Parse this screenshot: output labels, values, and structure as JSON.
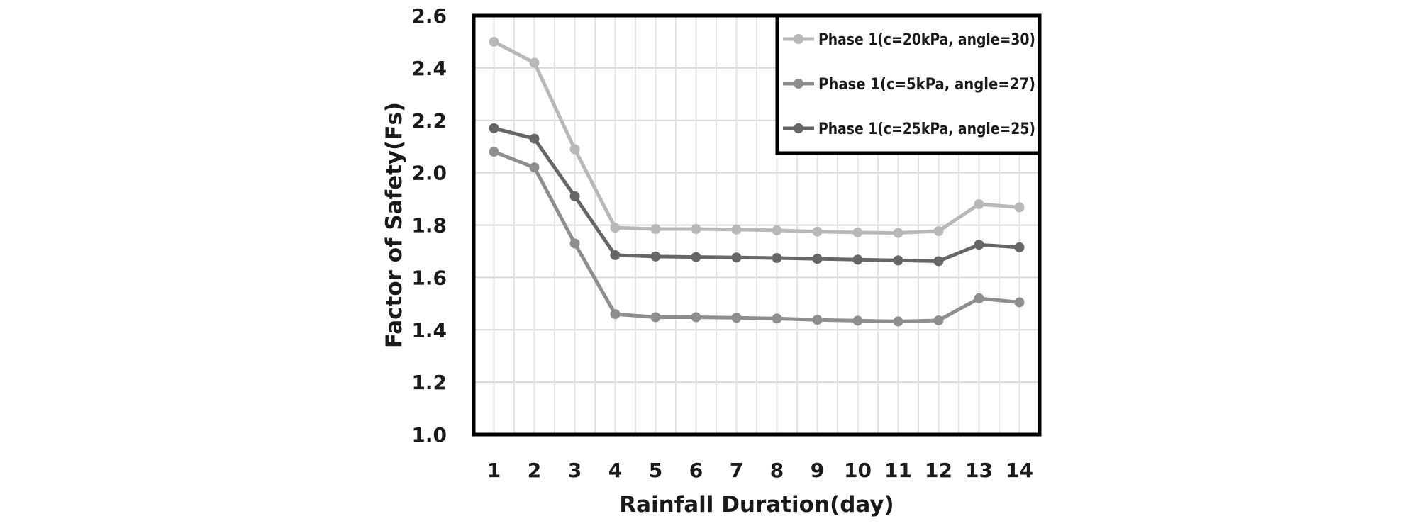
{
  "chart_data": {
    "type": "line",
    "title": "",
    "xlabel": "Rainfall Duration(day)",
    "ylabel": "Factor of Safety(Fs)",
    "x": [
      1,
      2,
      3,
      4,
      5,
      6,
      7,
      8,
      9,
      10,
      11,
      12,
      13,
      14
    ],
    "ylim": [
      1.0,
      2.6
    ],
    "yticks": [
      "1.0",
      "1.2",
      "1.4",
      "1.6",
      "1.8",
      "2.0",
      "2.2",
      "2.4",
      "2.6"
    ],
    "grid": true,
    "legend_position": "top-right",
    "series": [
      {
        "name": "Phase 1(c=20kPa, angle=30)",
        "color": "#b8b8b8",
        "values": [
          2.5,
          2.42,
          2.09,
          1.79,
          1.785,
          1.785,
          1.783,
          1.78,
          1.775,
          1.772,
          1.77,
          1.777,
          1.88,
          1.868
        ]
      },
      {
        "name": "Phase 1(c=5kPa, angle=27)",
        "color": "#8e8e8e",
        "values": [
          2.08,
          2.02,
          1.73,
          1.46,
          1.448,
          1.448,
          1.446,
          1.443,
          1.438,
          1.435,
          1.432,
          1.436,
          1.52,
          1.505
        ]
      },
      {
        "name": "Phase 1(c=25kPa, angle=25)",
        "color": "#666666",
        "values": [
          2.17,
          2.13,
          1.91,
          1.685,
          1.68,
          1.678,
          1.676,
          1.674,
          1.671,
          1.668,
          1.665,
          1.662,
          1.725,
          1.715
        ]
      }
    ]
  }
}
